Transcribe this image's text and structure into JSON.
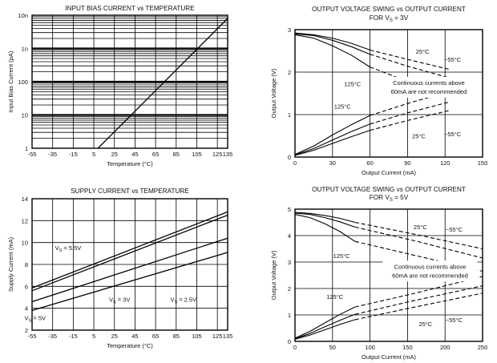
{
  "chart_data": [
    {
      "type": "line",
      "id": "bias",
      "title": "INPUT BIAS CURRENT vs TEMPERATURE",
      "xlabel": "Temperature (°C)",
      "ylabel": "Input Bias Current (pA)",
      "yscale": "log",
      "xlim": [
        -55,
        135
      ],
      "ylim": [
        1,
        10000
      ],
      "xticks": [
        "-55",
        "-35",
        "-15",
        "5",
        "25",
        "45",
        "65",
        "85",
        "105",
        "125",
        "135"
      ],
      "xtick_values": [
        -55,
        -35,
        -15,
        5,
        25,
        45,
        65,
        85,
        105,
        125,
        135
      ],
      "yticks": [
        "1",
        "10",
        "100",
        "1n",
        "10n"
      ],
      "ytick_values": [
        1,
        10,
        100,
        1000,
        10000
      ],
      "series": [
        {
          "name": "Bias current",
          "x": [
            9,
            135
          ],
          "y": [
            1,
            8000
          ]
        }
      ]
    },
    {
      "type": "line",
      "id": "swing3",
      "title": "OUTPUT VOLTAGE SWING vs OUTPUT CURRENT",
      "subtitle": "FOR V",
      "subtitle_sub": "S",
      "subtitle_tail": " = 3V",
      "xlabel": "Output Current (mA)",
      "ylabel": "Output Voltage (V)",
      "xlim": [
        0,
        150
      ],
      "ylim": [
        0,
        3
      ],
      "xticks": [
        "0",
        "30",
        "60",
        "90",
        "120",
        "150"
      ],
      "xtick_values": [
        0,
        30,
        60,
        90,
        120,
        150
      ],
      "yticks": [
        "0",
        "1",
        "2",
        "3"
      ],
      "ytick_values": [
        0,
        1,
        2,
        3
      ],
      "annotation": [
        "Continuous currents above",
        "60mA are not recommended"
      ],
      "labels": [
        {
          "text": "25°C",
          "x": 102,
          "y": 2.43
        },
        {
          "text": "−55°C",
          "x": 126,
          "y": 2.25
        },
        {
          "text": "125°C",
          "x": 46,
          "y": 1.67
        },
        {
          "text": "125°C",
          "x": 38,
          "y": 1.14
        },
        {
          "text": "25°C",
          "x": 99,
          "y": 0.44
        },
        {
          "text": "−55°C",
          "x": 126,
          "y": 0.49
        }
      ],
      "series": [
        {
          "name": "125°C high",
          "solid": {
            "x": [
              0,
              15,
              30,
              45,
              60
            ],
            "y": [
              2.88,
              2.8,
              2.62,
              2.4,
              2.12
            ]
          },
          "dashed": {
            "x": [
              60,
              90,
              124
            ],
            "y": [
              2.12,
              1.78,
              1.45
            ]
          }
        },
        {
          "name": "25°C high",
          "solid": {
            "x": [
              0,
              15,
              30,
              45,
              60
            ],
            "y": [
              2.9,
              2.86,
              2.75,
              2.6,
              2.42
            ]
          },
          "dashed": {
            "x": [
              60,
              90,
              124
            ],
            "y": [
              2.42,
              2.14,
              1.86
            ]
          }
        },
        {
          "name": "-55°C high",
          "solid": {
            "x": [
              0,
              15,
              30,
              45,
              60
            ],
            "y": [
              2.92,
              2.88,
              2.8,
              2.68,
              2.52
            ]
          },
          "dashed": {
            "x": [
              60,
              90,
              124
            ],
            "y": [
              2.52,
              2.3,
              2.06
            ]
          }
        },
        {
          "name": "125°C low",
          "solid": {
            "x": [
              0,
              15,
              30,
              45,
              60
            ],
            "y": [
              0.06,
              0.26,
              0.52,
              0.76,
              0.98
            ]
          },
          "dashed": {
            "x": [
              60,
              90,
              124
            ],
            "y": [
              0.98,
              1.26,
              1.55
            ]
          }
        },
        {
          "name": "25°C low",
          "solid": {
            "x": [
              0,
              15,
              30,
              45,
              60
            ],
            "y": [
              0.05,
              0.2,
              0.4,
              0.6,
              0.78
            ]
          },
          "dashed": {
            "x": [
              60,
              90,
              124
            ],
            "y": [
              0.78,
              1.04,
              1.3
            ]
          }
        },
        {
          "name": "-55°C low",
          "solid": {
            "x": [
              0,
              15,
              30,
              45,
              60
            ],
            "y": [
              0.04,
              0.16,
              0.32,
              0.48,
              0.63
            ]
          },
          "dashed": {
            "x": [
              60,
              90,
              124
            ],
            "y": [
              0.63,
              0.86,
              1.1
            ]
          }
        }
      ]
    },
    {
      "type": "line",
      "id": "supply",
      "title": "SUPPLY CURRENT vs TEMPERATURE",
      "xlabel": "Temperature (°C)",
      "ylabel": "Supply Current (mA)",
      "xlim": [
        -55,
        135
      ],
      "ylim": [
        2,
        14
      ],
      "xticks": [
        "-55",
        "-35",
        "-15",
        "5",
        "25",
        "45",
        "65",
        "85",
        "105",
        "125",
        "135"
      ],
      "xtick_values": [
        -55,
        -35,
        -15,
        5,
        25,
        45,
        65,
        85,
        105,
        125,
        135
      ],
      "yticks": [
        "2",
        "4",
        "6",
        "8",
        "10",
        "12",
        "14"
      ],
      "ytick_values": [
        2,
        4,
        6,
        8,
        10,
        12,
        14
      ],
      "labels": [
        {
          "text": "V",
          "sub": "S",
          "tail": " = 5.5V",
          "x": -20,
          "y": 9.3
        },
        {
          "text": "V",
          "sub": "S",
          "tail": " = 3V",
          "x": 30,
          "y": 4.6
        },
        {
          "text": "V",
          "sub": "S",
          "tail": " = 2.5V",
          "x": 92,
          "y": 4.6
        },
        {
          "text": "V",
          "sub": "S",
          "tail": " = 5V",
          "x": -52,
          "y": 2.9
        }
      ],
      "series": [
        {
          "name": "VS = 5.5V",
          "x": [
            -55,
            135
          ],
          "y": [
            5.85,
            12.8
          ]
        },
        {
          "name": "VS = 5V",
          "x": [
            -55,
            135
          ],
          "y": [
            5.6,
            12.5
          ]
        },
        {
          "name": "VS = 3V",
          "x": [
            -55,
            135
          ],
          "y": [
            4.6,
            10.4
          ]
        },
        {
          "name": "VS = 2.5V",
          "x": [
            -55,
            135
          ],
          "y": [
            3.8,
            9.1
          ]
        }
      ]
    },
    {
      "type": "line",
      "id": "swing5",
      "title": "OUTPUT VOLTAGE SWING vs OUTPUT CURRENT",
      "subtitle": "FOR V",
      "subtitle_sub": "S",
      "subtitle_tail": " = 5V",
      "xlabel": "Output Current (mA)",
      "ylabel": "Output Voltage (V)",
      "xlim": [
        0,
        250
      ],
      "ylim": [
        0,
        5
      ],
      "xticks": [
        "0",
        "50",
        "100",
        "150",
        "200",
        "250"
      ],
      "xtick_values": [
        0,
        50,
        100,
        150,
        200,
        250
      ],
      "yticks": [
        "0",
        "1",
        "2",
        "3",
        "4",
        "5"
      ],
      "ytick_values": [
        0,
        1,
        2,
        3,
        4,
        5
      ],
      "annotation": [
        "Continuous currents above",
        "60mA are not recommended"
      ],
      "labels": [
        {
          "text": "25°C",
          "x": 167,
          "y": 4.25
        },
        {
          "text": "−55°C",
          "x": 212,
          "y": 4.15
        },
        {
          "text": "125°C",
          "x": 62,
          "y": 3.15
        },
        {
          "text": "125°C",
          "x": 53,
          "y": 1.6
        },
        {
          "text": "25°C",
          "x": 174,
          "y": 0.58
        },
        {
          "text": "−55°C",
          "x": 212,
          "y": 0.72
        }
      ],
      "series": [
        {
          "name": "125°C high",
          "solid": {
            "x": [
              0,
              20,
              40,
              60,
              80
            ],
            "y": [
              4.8,
              4.68,
              4.45,
              4.15,
              3.78
            ]
          },
          "dashed": {
            "x": [
              80,
              160,
              250
            ],
            "y": [
              3.78,
              3.25,
              2.65
            ]
          }
        },
        {
          "name": "25°C high",
          "solid": {
            "x": [
              0,
              20,
              40,
              60,
              80
            ],
            "y": [
              4.85,
              4.8,
              4.68,
              4.52,
              4.32
            ]
          },
          "dashed": {
            "x": [
              80,
              160,
              250
            ],
            "y": [
              4.32,
              3.8,
              3.15
            ]
          }
        },
        {
          "name": "-55°C high",
          "solid": {
            "x": [
              0,
              20,
              40,
              60,
              80
            ],
            "y": [
              4.88,
              4.84,
              4.76,
              4.65,
              4.5
            ]
          },
          "dashed": {
            "x": [
              80,
              160,
              250
            ],
            "y": [
              4.5,
              4.05,
              3.5
            ]
          }
        },
        {
          "name": "125°C low",
          "solid": {
            "x": [
              0,
              20,
              40,
              60,
              80
            ],
            "y": [
              0.12,
              0.38,
              0.7,
              1.02,
              1.3
            ]
          },
          "dashed": {
            "x": [
              80,
              160,
              250
            ],
            "y": [
              1.3,
              1.82,
              2.45
            ]
          }
        },
        {
          "name": "25°C low",
          "solid": {
            "x": [
              0,
              20,
              40,
              60,
              80
            ],
            "y": [
              0.1,
              0.3,
              0.55,
              0.8,
              1.02
            ]
          },
          "dashed": {
            "x": [
              80,
              160,
              250
            ],
            "y": [
              1.02,
              1.55,
              2.1
            ]
          }
        },
        {
          "name": "-55°C low",
          "solid": {
            "x": [
              0,
              20,
              40,
              60,
              80
            ],
            "y": [
              0.08,
              0.24,
              0.44,
              0.64,
              0.82
            ]
          },
          "dashed": {
            "x": [
              80,
              160,
              250
            ],
            "y": [
              0.82,
              1.3,
              1.82
            ]
          }
        }
      ]
    }
  ]
}
